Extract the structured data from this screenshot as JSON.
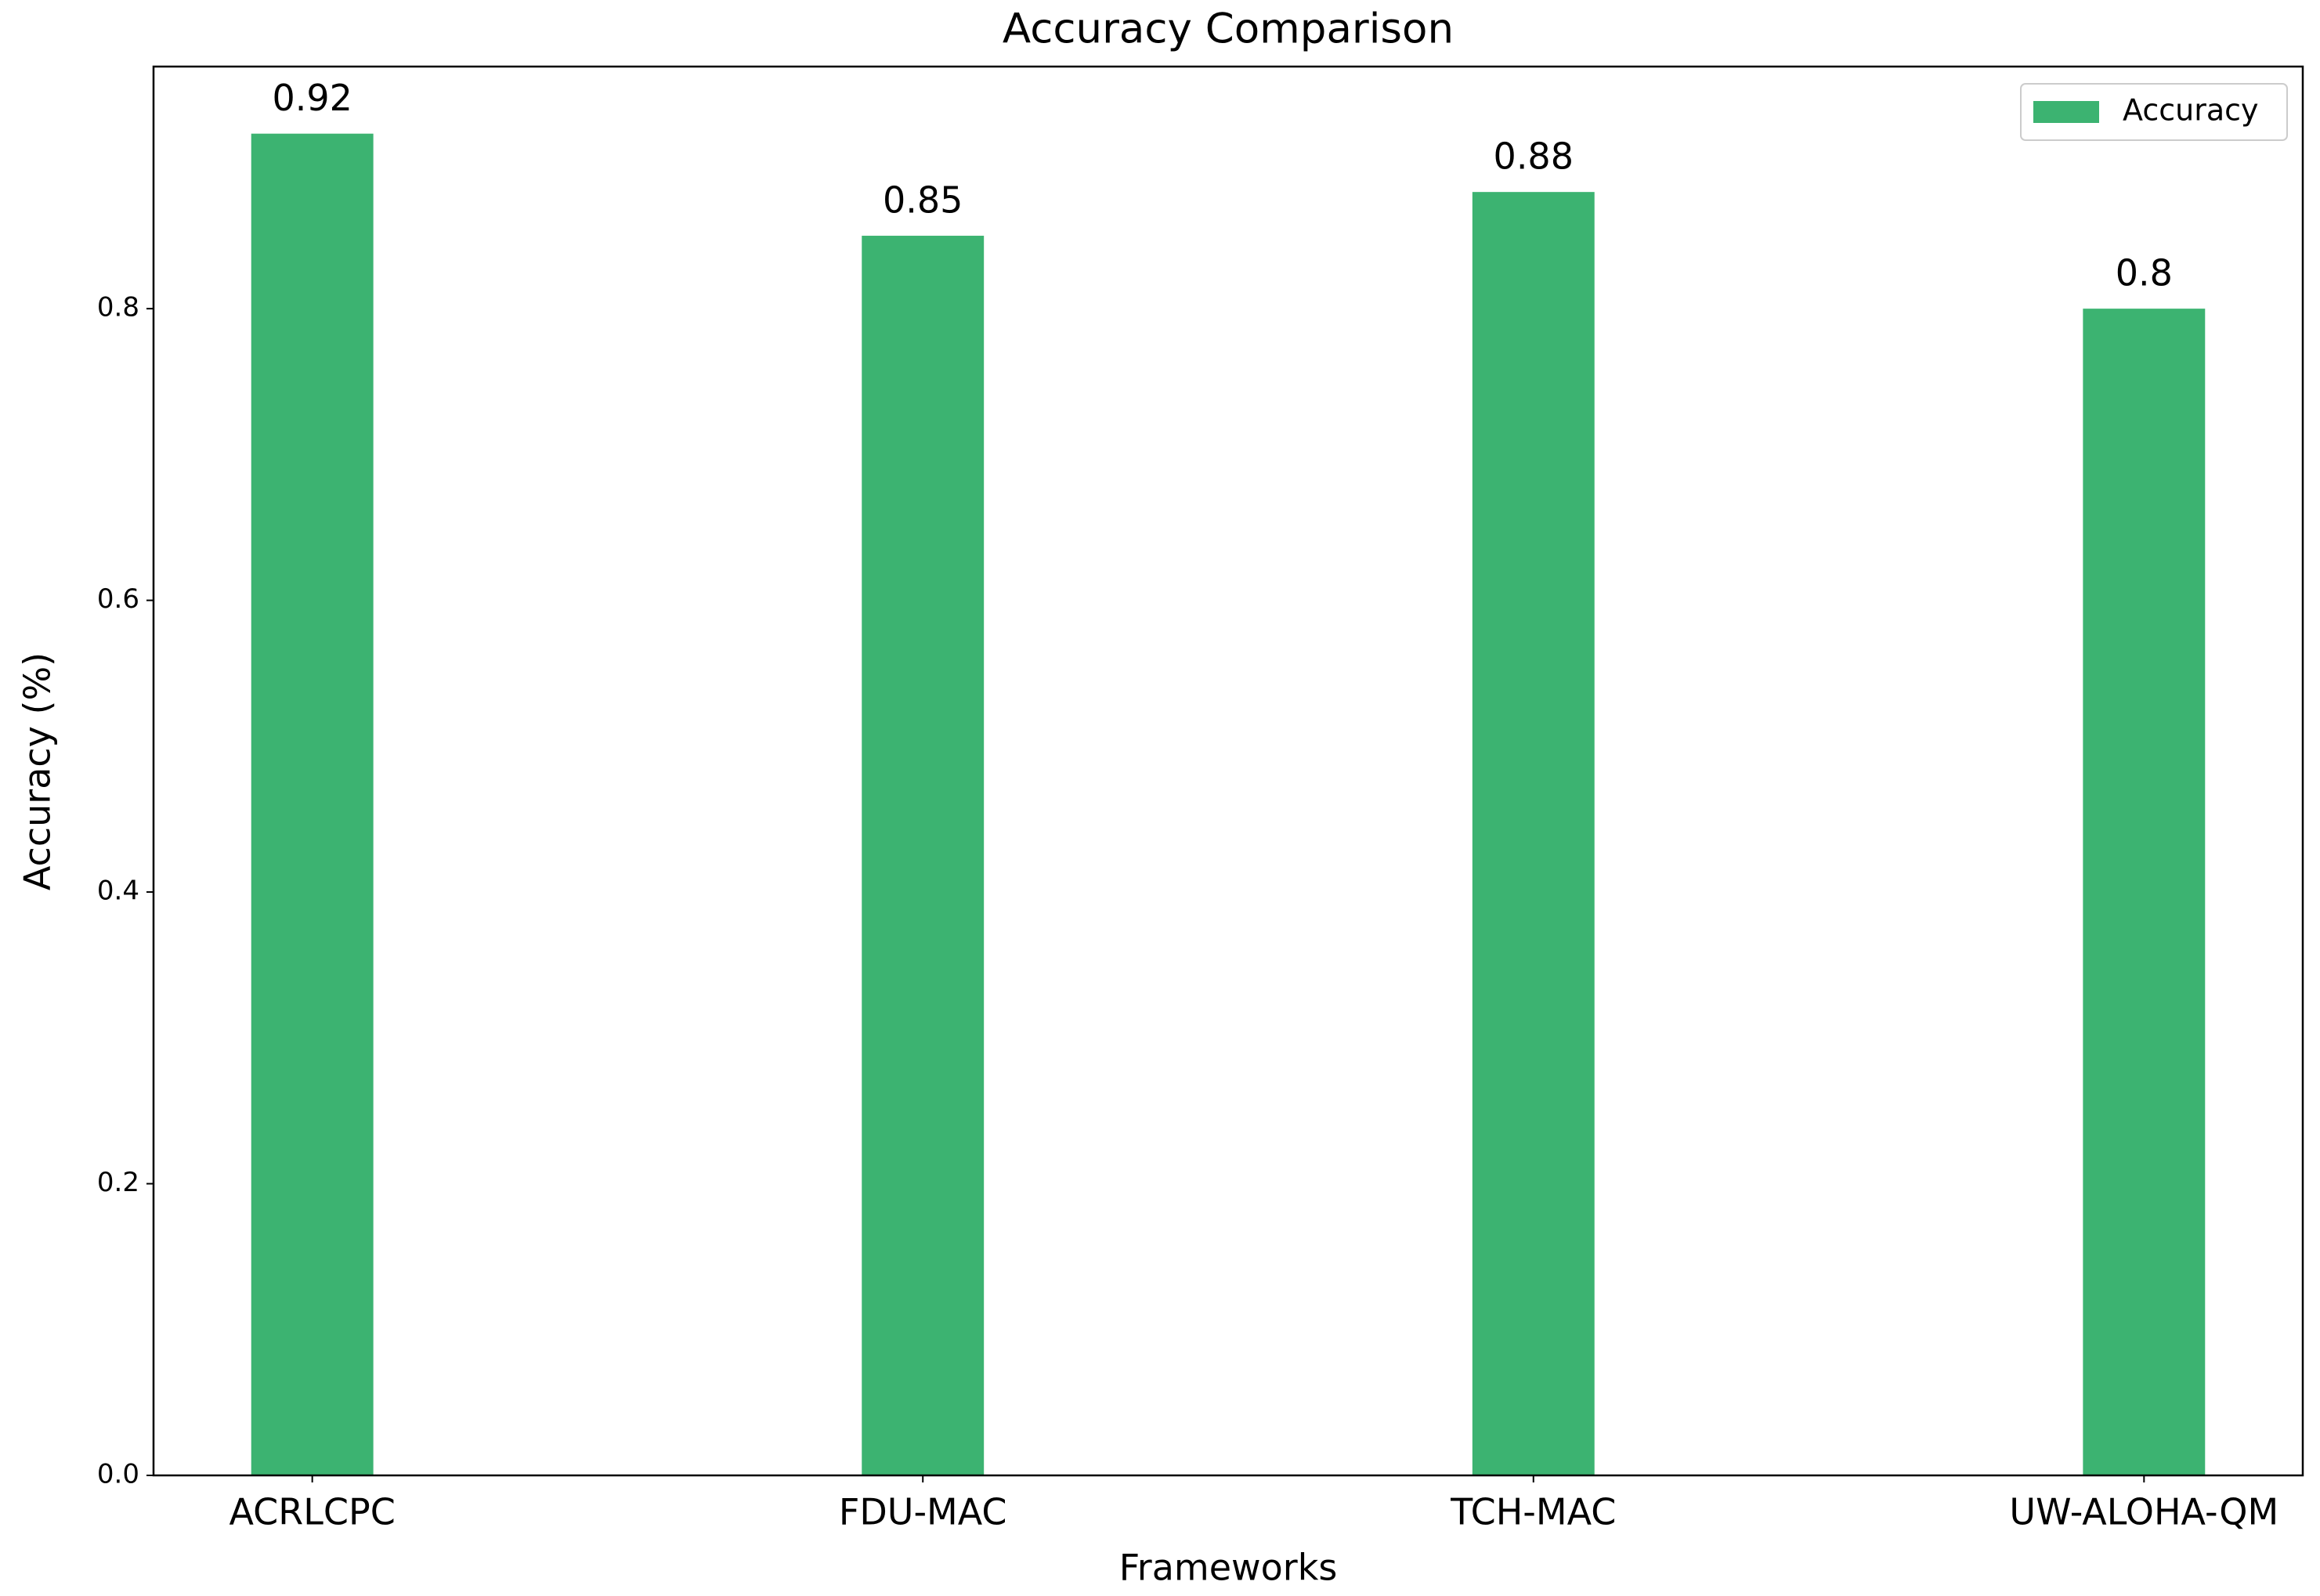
{
  "chart_data": {
    "type": "bar",
    "title": "Accuracy Comparison",
    "x_label": "Frameworks",
    "y_label": "Accuracy (%)",
    "categories": [
      "ACRLCPC",
      "FDU-MAC",
      "TCH-MAC",
      "UW-ALOHA-QM"
    ],
    "series": [
      {
        "name": "Accuracy",
        "color": "#3cb371",
        "values": [
          0.92,
          0.85,
          0.88,
          0.8
        ]
      }
    ],
    "ylim": [
      0,
      0.966
    ],
    "yticks": [
      {
        "value": 0,
        "label": "0.0"
      },
      0.2,
      0.4,
      0.6,
      0.8
    ],
    "legend": "upper-right",
    "grid": false
  }
}
